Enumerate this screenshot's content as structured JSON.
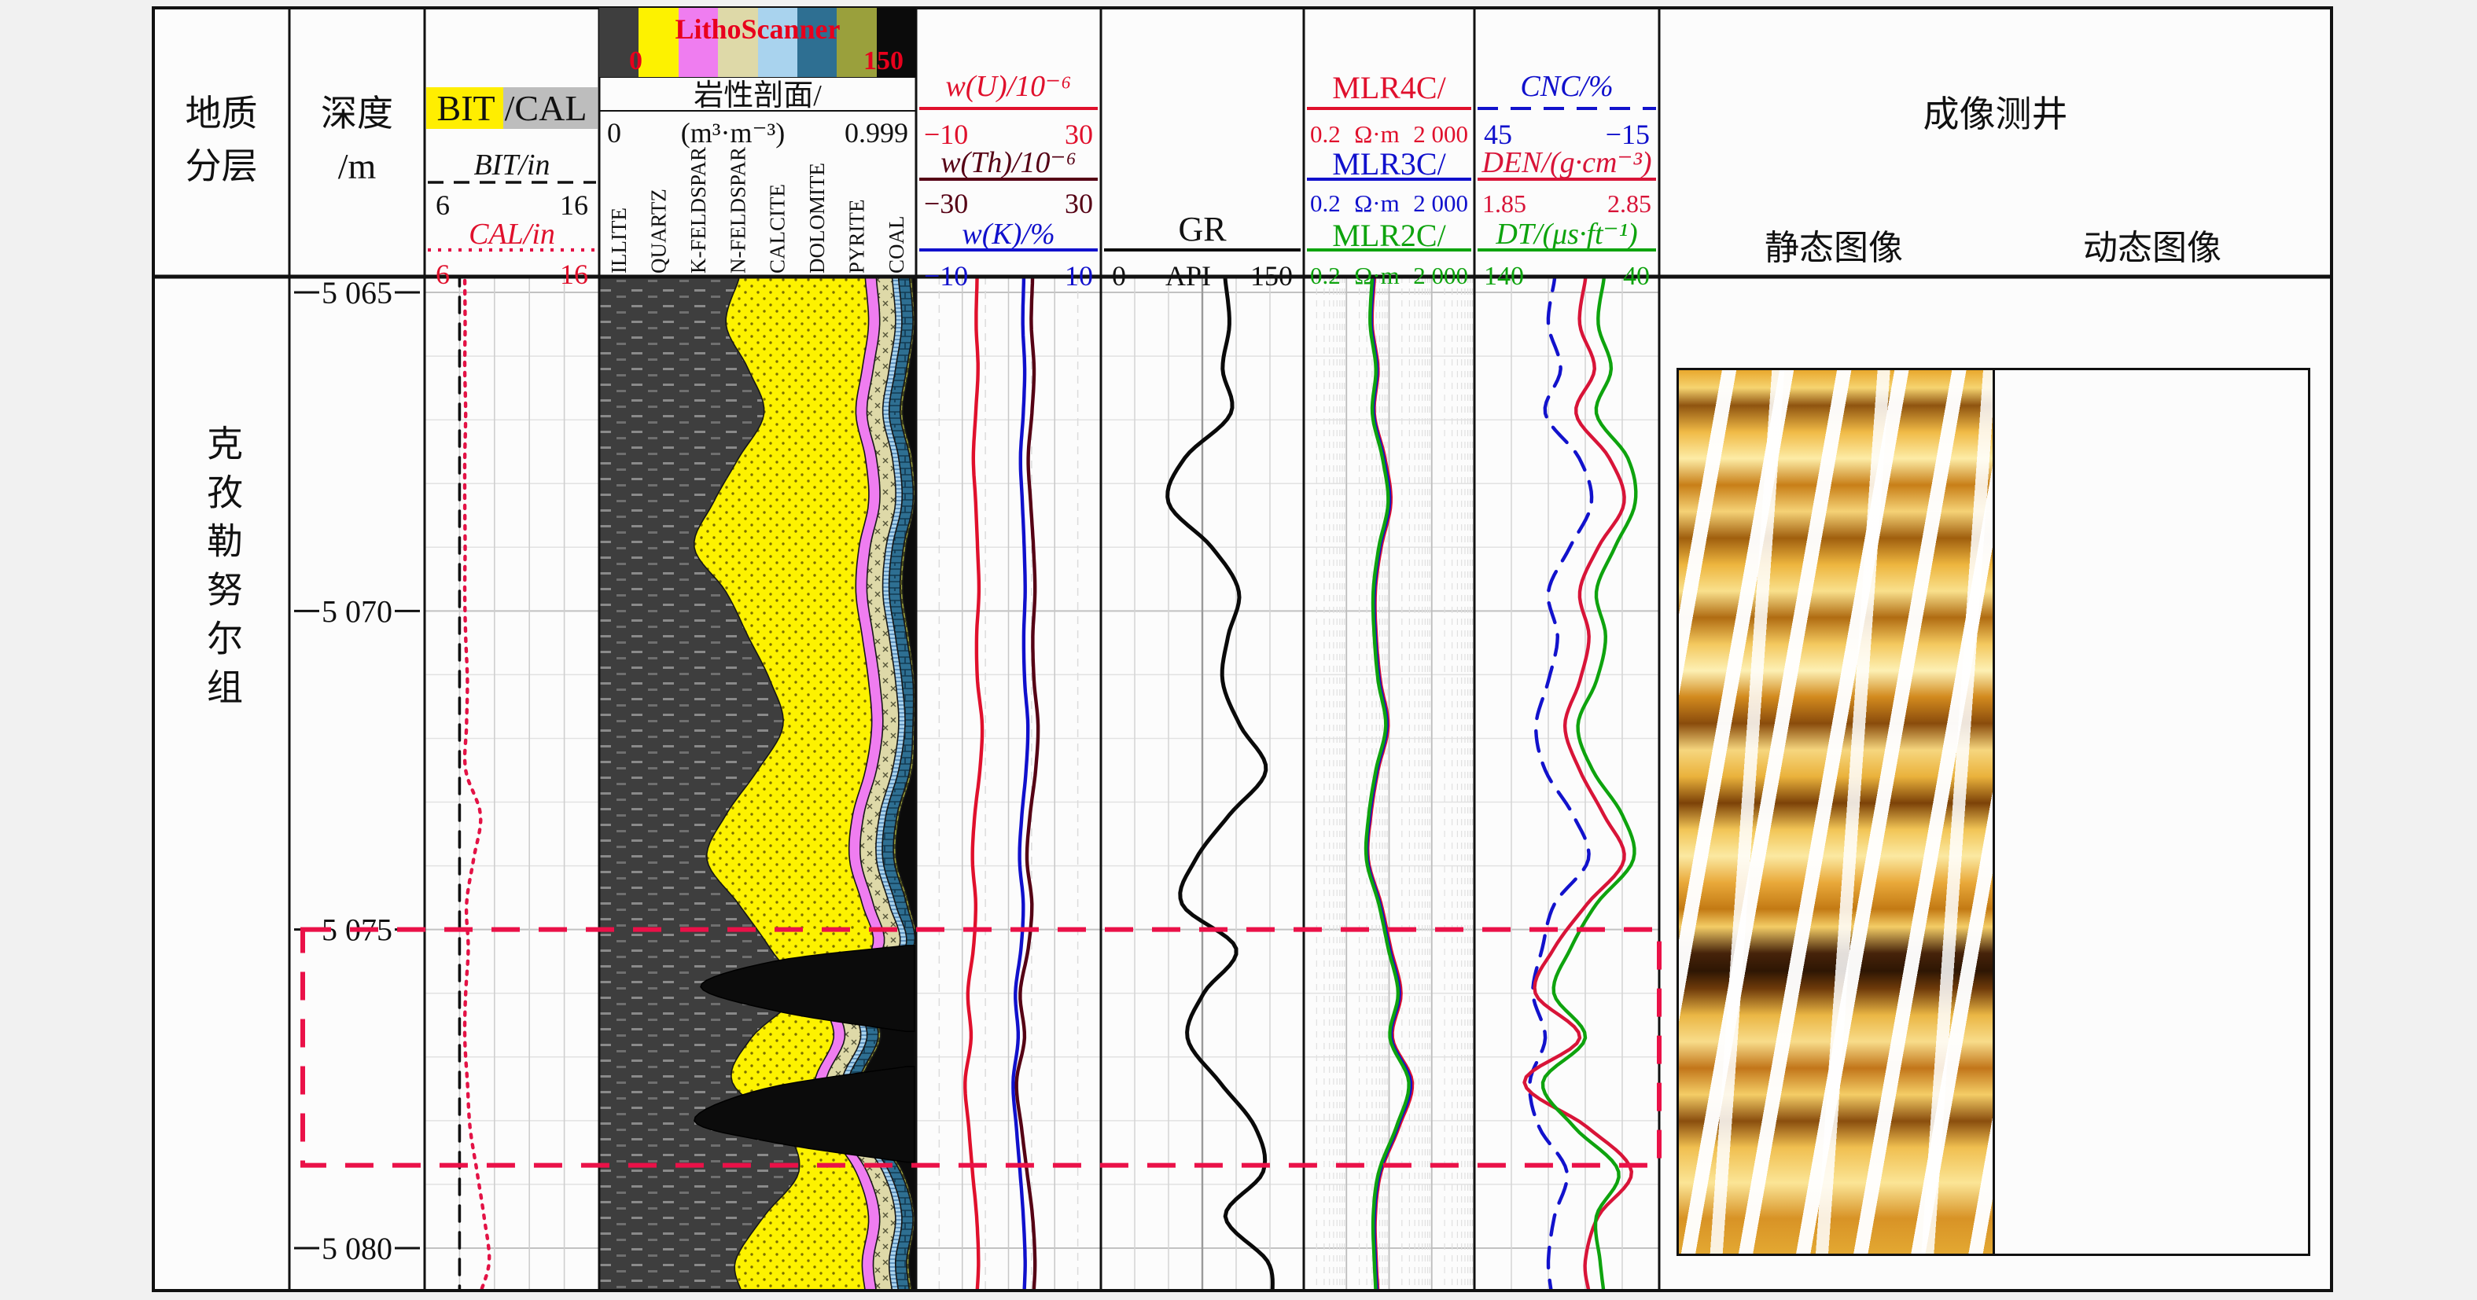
{
  "header": {
    "geology_title": [
      "地质",
      "分层"
    ],
    "depth_title": [
      "深度",
      "/m"
    ],
    "bitcal": {
      "chip_left": "BIT",
      "chip_right": "/CAL",
      "bit_label": "BIT/in",
      "bit_min": "6",
      "bit_max": "16",
      "cal_label": "CAL/in",
      "cal_min": "6",
      "cal_max": "16"
    },
    "litho": {
      "banner_title": "LithoScanner",
      "banner_min": "0",
      "banner_max": "150",
      "title": "岩性剖面/",
      "row_min": "0",
      "row_unit": "(m³·m⁻³)",
      "row_max": "0.999"
    },
    "spectral": [
      {
        "label": "w(U)/10⁻⁶",
        "min": "−10",
        "max": "30"
      },
      {
        "label": "w(Th)/10⁻⁶",
        "min": "−30",
        "max": "30"
      },
      {
        "label": "w(K)/%",
        "min": "−10",
        "max": "10"
      }
    ],
    "gr": {
      "label": "GR",
      "min": "0",
      "unit": "API",
      "max": "150"
    },
    "resistivity": [
      {
        "label": "MLR4C/",
        "min": "0.2",
        "unit": "Ω·m",
        "max": "2 000"
      },
      {
        "label": "MLR3C/",
        "min": "0.2",
        "unit": "Ω·m",
        "max": "2 000"
      },
      {
        "label": "MLR2C/",
        "min": "0.2",
        "unit": "Ω·m",
        "max": "2 000"
      }
    ],
    "porosity": [
      {
        "label": "CNC/%",
        "min": "45",
        "max": "−15"
      },
      {
        "label": "DEN/(g·cm⁻³)",
        "min": "1.85",
        "max": "2.85"
      },
      {
        "label": "DT/(μs·ft⁻¹)",
        "min": "140",
        "max": "40"
      }
    ],
    "imaging": {
      "title": "成像测井",
      "static_label": "静态图像",
      "dynamic_label": "动态图像"
    }
  },
  "formation_label": "克孜勒努尔组",
  "colors": {
    "red": "#e0102c",
    "maroon": "#550014",
    "blue": "#1010cc",
    "green": "#0ea30e",
    "black": "#111111",
    "highlight": "#ea1148",
    "banner_text": "#e8001c"
  },
  "chart_data": {
    "type": "well-log",
    "depth_axis": {
      "unit": "m",
      "top": 5064.75,
      "bottom": 5080.7,
      "ticks": [
        5065,
        5070,
        5075,
        5080
      ],
      "tick_labels": [
        "5 065",
        "5 070",
        "5 075",
        "5 080"
      ]
    },
    "sample_depths": [
      5064.8,
      5065.5,
      5066.2,
      5066.9,
      5067.6,
      5068.3,
      5069.0,
      5069.7,
      5070.4,
      5071.1,
      5071.8,
      5072.5,
      5073.2,
      5073.9,
      5074.6,
      5075.3,
      5076.0,
      5076.7,
      5077.4,
      5078.1,
      5078.8,
      5079.5,
      5080.2,
      5080.7
    ],
    "tracks": [
      {
        "id": "bitcal",
        "curves": [
          {
            "name": "BIT",
            "unit": "in",
            "min": 6,
            "max": 16,
            "color": "#111111",
            "style": "dash",
            "values": [
              8,
              8,
              8,
              8,
              8,
              8,
              8,
              8,
              8,
              8,
              8,
              8,
              8,
              8,
              8,
              8,
              8,
              8,
              8,
              8,
              8,
              8,
              8,
              8
            ]
          },
          {
            "name": "CAL",
            "unit": "in",
            "min": 6,
            "max": 16,
            "color": "#e31245",
            "style": "dot",
            "values": [
              8.3,
              8.32,
              8.3,
              8.35,
              8.3,
              8.3,
              8.32,
              8.3,
              8.35,
              8.45,
              8.4,
              8.35,
              9.2,
              8.8,
              8.4,
              8.5,
              8.35,
              8.3,
              8.45,
              8.6,
              9.0,
              9.4,
              9.7,
              9.2
            ]
          }
        ]
      },
      {
        "id": "lithology",
        "min": 0,
        "max": 0.999,
        "unit": "m³·m⁻³",
        "minerals": [
          {
            "name": "ILLITE",
            "color": "#3e3e3e"
          },
          {
            "name": "QUARTZ",
            "color": "#fdf200"
          },
          {
            "name": "K-FELDSPAR",
            "color": "#ef7df0"
          },
          {
            "name": "N-FELDSPAR",
            "color": "#ded9a8"
          },
          {
            "name": "CALCITE",
            "color": "#a9d3ee"
          },
          {
            "name": "DOLOMITE",
            "color": "#2e6f92"
          },
          {
            "name": "PYRITE",
            "color": "#9aa03c"
          },
          {
            "name": "COAL",
            "color": "#0b0b0b"
          }
        ],
        "cum_fractions": {
          "illite": [
            0.44,
            0.4,
            0.47,
            0.52,
            0.44,
            0.36,
            0.3,
            0.4,
            0.47,
            0.54,
            0.58,
            0.5,
            0.4,
            0.34,
            0.44,
            0.54,
            0.62,
            0.48,
            0.42,
            0.58,
            0.63,
            0.52,
            0.43,
            0.45
          ],
          "quartz": [
            0.84,
            0.85,
            0.83,
            0.81,
            0.84,
            0.85,
            0.82,
            0.81,
            0.83,
            0.85,
            0.86,
            0.84,
            0.8,
            0.79,
            0.83,
            0.86,
            0.72,
            0.74,
            0.68,
            0.72,
            0.81,
            0.85,
            0.83,
            0.84
          ],
          "kfeld": [
            0.875,
            0.885,
            0.865,
            0.845,
            0.875,
            0.885,
            0.855,
            0.845,
            0.865,
            0.885,
            0.895,
            0.875,
            0.835,
            0.825,
            0.865,
            0.895,
            0.755,
            0.775,
            0.715,
            0.755,
            0.845,
            0.885,
            0.865,
            0.875
          ],
          "nfeld": [
            0.925,
            0.935,
            0.915,
            0.895,
            0.925,
            0.935,
            0.905,
            0.895,
            0.915,
            0.935,
            0.945,
            0.925,
            0.885,
            0.875,
            0.915,
            0.945,
            0.805,
            0.825,
            0.765,
            0.805,
            0.895,
            0.935,
            0.915,
            0.925
          ],
          "calcite": [
            0.945,
            0.955,
            0.935,
            0.915,
            0.945,
            0.955,
            0.925,
            0.915,
            0.935,
            0.955,
            0.965,
            0.945,
            0.905,
            0.895,
            0.935,
            0.965,
            0.825,
            0.845,
            0.785,
            0.825,
            0.915,
            0.955,
            0.935,
            0.945
          ],
          "dolomite": [
            0.98,
            0.99,
            0.97,
            0.95,
            0.98,
            0.99,
            0.96,
            0.95,
            0.97,
            0.99,
            0.99,
            0.98,
            0.94,
            0.93,
            0.97,
            0.99,
            0.86,
            0.88,
            0.82,
            0.86,
            0.95,
            0.99,
            0.97,
            0.98
          ],
          "pyrite": [
            0.988,
            0.995,
            0.978,
            0.958,
            0.988,
            0.995,
            0.968,
            0.958,
            0.978,
            0.995,
            0.995,
            0.988,
            0.948,
            0.938,
            0.978,
            0.995,
            0.868,
            0.888,
            0.828,
            0.868,
            0.958,
            0.995,
            0.978,
            0.988
          ]
        },
        "coal_wedges": [
          {
            "depths": [
              5075.25,
              5075.5,
              5075.9,
              5076.3,
              5076.6
            ],
            "left_edge": [
              0.97,
              0.55,
              0.32,
              0.58,
              0.97
            ]
          },
          {
            "depths": [
              5077.15,
              5077.5,
              5078.0,
              5078.35,
              5078.65
            ],
            "left_edge": [
              0.97,
              0.52,
              0.3,
              0.56,
              0.97
            ]
          }
        ]
      },
      {
        "id": "spectral",
        "curves": [
          {
            "name": "w(U)/10-6",
            "min": -10,
            "max": 30,
            "color": "#e0102c",
            "style": "solid",
            "values": [
              3.2,
              3.0,
              3.4,
              2.9,
              2.4,
              2.9,
              3.3,
              3.6,
              3.1,
              3.3,
              4.3,
              3.8,
              2.7,
              2.2,
              2.9,
              2.4,
              1.2,
              1.9,
              0.6,
              1.4,
              2.2,
              3.1,
              3.5,
              3.2
            ]
          },
          {
            "name": "w(Th)/10-6",
            "min": -30,
            "max": 30,
            "color": "#550014",
            "style": "solid",
            "values": [
              7.8,
              7.4,
              8.3,
              7.6,
              6.4,
              7.2,
              8.1,
              8.6,
              7.9,
              8.3,
              9.6,
              8.8,
              7.0,
              6.0,
              7.6,
              6.4,
              3.8,
              5.2,
              2.6,
              4.2,
              6.0,
              7.8,
              8.6,
              8.2
            ]
          },
          {
            "name": "w(K)/%",
            "min": -10,
            "max": 10,
            "color": "#1010cc",
            "style": "solid",
            "values": [
              1.65,
              1.55,
              1.75,
              1.6,
              1.3,
              1.5,
              1.7,
              1.8,
              1.65,
              1.75,
              2.1,
              1.9,
              1.45,
              1.2,
              1.6,
              1.35,
              0.75,
              1.05,
              0.5,
              0.85,
              1.25,
              1.6,
              1.8,
              1.7
            ]
          }
        ]
      },
      {
        "id": "gr",
        "curves": [
          {
            "name": "GR",
            "unit": "API",
            "min": 0,
            "max": 150,
            "color": "#0a0a0a",
            "style": "solid",
            "values": [
              92,
              95,
              90,
              96,
              62,
              50,
              82,
              102,
              94,
              90,
              103,
              122,
              95,
              70,
              60,
              100,
              76,
              64,
              88,
              114,
              120,
              92,
              123,
              127
            ]
          }
        ]
      },
      {
        "id": "resistivity",
        "log": true,
        "curves": [
          {
            "name": "MLR4C",
            "unit": "ohm.m",
            "min": 0.2,
            "max": 2000,
            "color": "#e0102c",
            "style": "solid",
            "values": [
              9,
              8,
              11,
              9,
              16,
              22,
              13,
              9.5,
              10,
              12.5,
              19,
              11,
              7.5,
              6.5,
              13,
              22,
              38,
              24,
              70,
              34,
              13,
              9.5,
              10,
              11
            ]
          },
          {
            "name": "MLR3C",
            "unit": "ohm.m",
            "min": 0.2,
            "max": 2000,
            "color": "#1010cc",
            "style": "solid",
            "values": [
              8.5,
              7.6,
              10.4,
              8.6,
              15,
              20.5,
              12.2,
              9,
              9.5,
              11.8,
              17.8,
              10.4,
              7.1,
              6.2,
              12.2,
              20.5,
              35,
              22.4,
              64,
              31.5,
              12.2,
              9,
              9.5,
              10.4
            ]
          },
          {
            "name": "MLR2C",
            "unit": "ohm.m",
            "min": 0.2,
            "max": 2000,
            "color": "#0ea30e",
            "style": "solid",
            "values": [
              8,
              7.2,
              9.8,
              8.1,
              14,
              19,
              11.5,
              8.5,
              9,
              11.1,
              16.7,
              9.8,
              6.7,
              5.9,
              11.5,
              19.2,
              32.5,
              21,
              58,
              29.5,
              11.5,
              8.5,
              9,
              9.8
            ]
          }
        ]
      },
      {
        "id": "porosity",
        "curves": [
          {
            "name": "CNC",
            "unit": "%",
            "min": 45,
            "max": -15,
            "color": "#1212cc",
            "style": "longdash",
            "values": [
              19,
              21,
              17,
              22,
              11,
              7,
              14,
              21,
              18,
              21,
              25,
              22,
              13,
              8,
              19,
              23,
              26,
              22,
              27,
              24,
              15,
              19,
              21,
              20
            ]
          },
          {
            "name": "DEN",
            "unit": "g/cm3",
            "min": 1.85,
            "max": 2.85,
            "color": "#d81438",
            "style": "solid",
            "values": [
              2.45,
              2.42,
              2.5,
              2.4,
              2.58,
              2.66,
              2.52,
              2.42,
              2.47,
              2.42,
              2.34,
              2.42,
              2.55,
              2.66,
              2.46,
              2.28,
              2.18,
              2.42,
              2.12,
              2.46,
              2.7,
              2.52,
              2.45,
              2.47
            ]
          },
          {
            "name": "DT",
            "unit": "us/ft",
            "min": 140,
            "max": 40,
            "color": "#0ea30e",
            "style": "solid",
            "values": [
              70,
              73,
              66,
              74,
              57,
              53,
              64,
              74,
              69,
              74,
              84,
              76,
              60,
              54,
              74,
              88,
              97,
              80,
              103,
              86,
              62,
              74,
              72,
              70
            ]
          }
        ]
      }
    ],
    "annotations": {
      "highlight_box": {
        "top_m": 5075.0,
        "bottom_m": 5078.7,
        "color": "#ea1148",
        "style": "dashed"
      }
    }
  }
}
